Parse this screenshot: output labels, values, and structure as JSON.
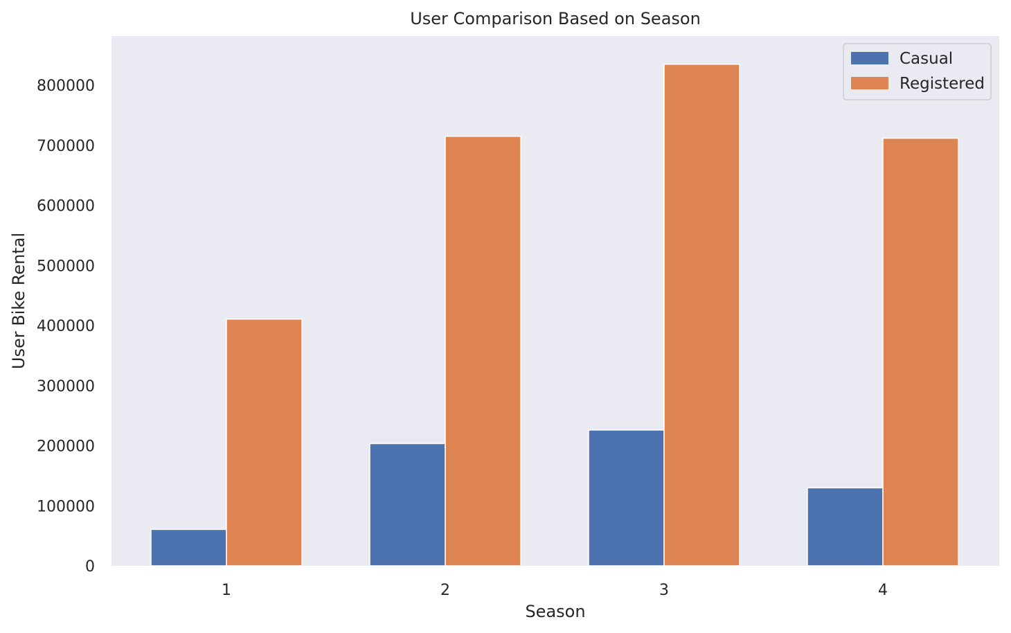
{
  "chart_data": {
    "type": "bar",
    "title": "User Comparison Based on Season",
    "xlabel": "Season",
    "ylabel": "User Bike Rental",
    "categories": [
      "1",
      "2",
      "3",
      "4"
    ],
    "series": [
      {
        "name": "Casual",
        "color": "#4c72b0",
        "values": [
          60622,
          203522,
          226091,
          129782
        ]
      },
      {
        "name": "Registered",
        "color": "#dd8452",
        "values": [
          410726,
          715067,
          835038,
          711831
        ]
      }
    ],
    "ylim": [
      0,
      882000
    ],
    "yticks": [
      0,
      100000,
      200000,
      300000,
      400000,
      500000,
      600000,
      700000,
      800000
    ],
    "ytick_labels": [
      "0",
      "100000",
      "200000",
      "300000",
      "400000",
      "500000",
      "600000",
      "700000",
      "800000"
    ],
    "grid": false,
    "legend_position": "top-right",
    "background_color": "#eaeaf2"
  }
}
